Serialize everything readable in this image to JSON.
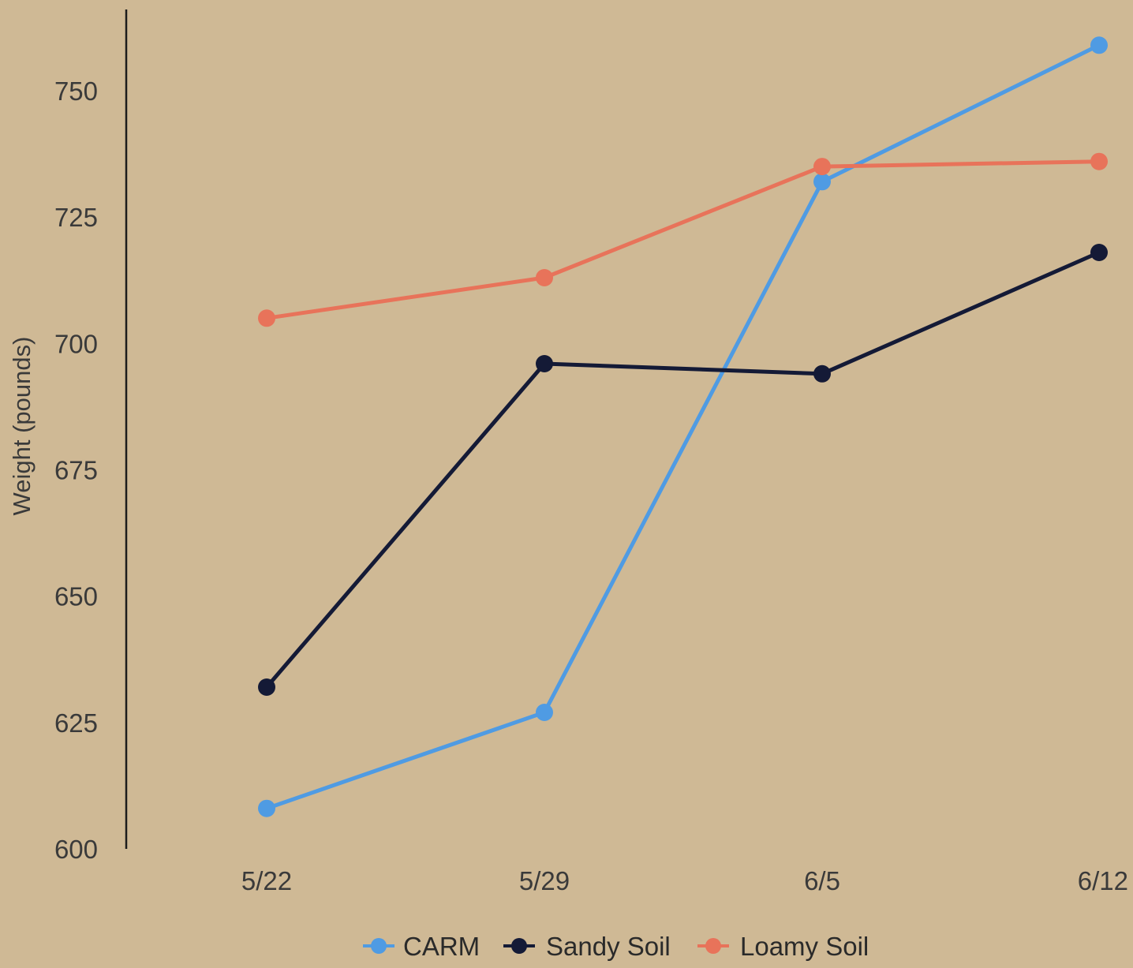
{
  "colors": {
    "background": "#cfb995",
    "axis": "#1c1c1c",
    "text": "#3a3a3a"
  },
  "chart_data": {
    "type": "line",
    "title": "",
    "xlabel": "",
    "ylabel": "Weight (pounds)",
    "categories": [
      "5/22",
      "5/29",
      "6/5",
      "6/12"
    ],
    "ylim": [
      600,
      760
    ],
    "yticks": [
      600,
      625,
      650,
      675,
      700,
      725,
      750
    ],
    "grid": false,
    "legend_position": "bottom-center",
    "series": [
      {
        "name": "CARM",
        "color": "#4f9be3",
        "values": [
          608,
          627,
          732,
          759
        ]
      },
      {
        "name": "Sandy Soil",
        "color": "#141a36",
        "values": [
          632,
          696,
          694,
          718
        ]
      },
      {
        "name": "Loamy Soil",
        "color": "#e8735a",
        "values": [
          705,
          713,
          735,
          736
        ]
      }
    ]
  }
}
